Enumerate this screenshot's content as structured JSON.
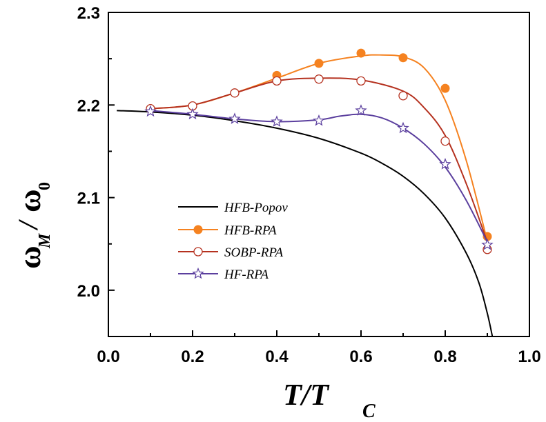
{
  "chart_data": {
    "type": "line",
    "xlabel": {
      "main": "T/T",
      "sub": "C"
    },
    "ylabel": {
      "main": "ω",
      "sub_main": "M",
      "divider": "/",
      "denominator": "ω",
      "sub_den": "0"
    },
    "xlim": [
      0.0,
      1.0
    ],
    "ylim": [
      1.95,
      2.3
    ],
    "xticks": [
      "0.0",
      "0.2",
      "0.4",
      "0.6",
      "0.8",
      "1.0"
    ],
    "yticks": [
      "2.0",
      "2.1",
      "2.2",
      "2.3"
    ],
    "legend_position": "middle-left",
    "series": [
      {
        "name": "HFB-Popov",
        "color": "#000000",
        "marker": "none",
        "curve": [
          [
            0.02,
            2.194
          ],
          [
            0.1,
            2.1925
          ],
          [
            0.2,
            2.189
          ],
          [
            0.3,
            2.183
          ],
          [
            0.4,
            2.175
          ],
          [
            0.5,
            2.164
          ],
          [
            0.6,
            2.148
          ],
          [
            0.65,
            2.137
          ],
          [
            0.7,
            2.123
          ],
          [
            0.75,
            2.104
          ],
          [
            0.8,
            2.078
          ],
          [
            0.85,
            2.04
          ],
          [
            0.88,
            2.008
          ],
          [
            0.9,
            1.975
          ],
          [
            0.912,
            1.95
          ]
        ],
        "points": []
      },
      {
        "name": "HFB-RPA",
        "color": "#f58220",
        "marker": "filled-circle",
        "curve": [
          [
            0.1,
            2.196
          ],
          [
            0.2,
            2.2
          ],
          [
            0.3,
            2.213
          ],
          [
            0.4,
            2.229
          ],
          [
            0.5,
            2.245
          ],
          [
            0.6,
            2.253
          ],
          [
            0.65,
            2.254
          ],
          [
            0.7,
            2.252
          ],
          [
            0.75,
            2.24
          ],
          [
            0.8,
            2.205
          ],
          [
            0.85,
            2.14
          ],
          [
            0.9,
            2.053
          ]
        ],
        "points": [
          [
            0.1,
            2.196
          ],
          [
            0.2,
            2.199
          ],
          [
            0.3,
            2.213
          ],
          [
            0.4,
            2.232
          ],
          [
            0.5,
            2.245
          ],
          [
            0.6,
            2.256
          ],
          [
            0.7,
            2.251
          ],
          [
            0.8,
            2.218
          ],
          [
            0.9,
            2.058
          ]
        ]
      },
      {
        "name": "SOBP-RPA",
        "color": "#b5311f",
        "marker": "open-circle",
        "curve": [
          [
            0.1,
            2.196
          ],
          [
            0.2,
            2.2
          ],
          [
            0.3,
            2.213
          ],
          [
            0.4,
            2.226
          ],
          [
            0.5,
            2.229
          ],
          [
            0.6,
            2.227
          ],
          [
            0.7,
            2.215
          ],
          [
            0.75,
            2.197
          ],
          [
            0.8,
            2.167
          ],
          [
            0.85,
            2.115
          ],
          [
            0.9,
            2.052
          ]
        ],
        "points": [
          [
            0.1,
            2.196
          ],
          [
            0.2,
            2.199
          ],
          [
            0.3,
            2.213
          ],
          [
            0.4,
            2.226
          ],
          [
            0.5,
            2.228
          ],
          [
            0.6,
            2.226
          ],
          [
            0.7,
            2.21
          ],
          [
            0.8,
            2.161
          ],
          [
            0.9,
            2.044
          ]
        ]
      },
      {
        "name": "HF-RPA",
        "color": "#5b3f9e",
        "marker": "open-star",
        "curve": [
          [
            0.1,
            2.194
          ],
          [
            0.2,
            2.19
          ],
          [
            0.3,
            2.185
          ],
          [
            0.4,
            2.182
          ],
          [
            0.5,
            2.184
          ],
          [
            0.55,
            2.188
          ],
          [
            0.6,
            2.19
          ],
          [
            0.65,
            2.186
          ],
          [
            0.7,
            2.175
          ],
          [
            0.75,
            2.158
          ],
          [
            0.8,
            2.133
          ],
          [
            0.85,
            2.097
          ],
          [
            0.9,
            2.052
          ]
        ],
        "points": [
          [
            0.1,
            2.193
          ],
          [
            0.2,
            2.19
          ],
          [
            0.3,
            2.185
          ],
          [
            0.4,
            2.182
          ],
          [
            0.5,
            2.183
          ],
          [
            0.6,
            2.194
          ],
          [
            0.7,
            2.175
          ],
          [
            0.8,
            2.136
          ],
          [
            0.9,
            2.049
          ]
        ]
      }
    ]
  }
}
